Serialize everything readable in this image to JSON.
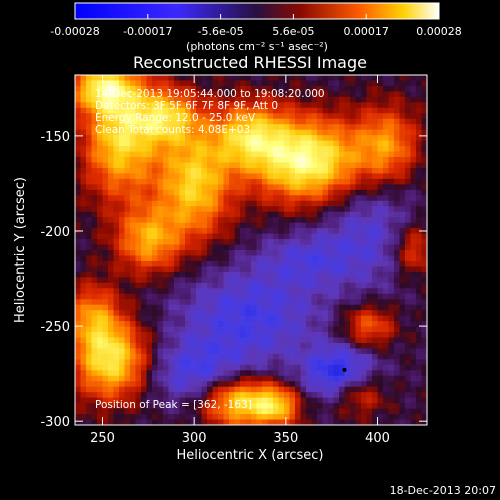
{
  "chart_data": {
    "type": "heatmap",
    "title": "Reconstructed RHESSI Image",
    "xlabel": "Heliocentric X (arcsec)",
    "ylabel": "Heliocentric Y (arcsec)",
    "xlim": [
      235,
      427
    ],
    "ylim": [
      -302,
      -118
    ],
    "xticks": [
      250,
      300,
      350,
      400
    ],
    "yticks": [
      -300,
      -250,
      -200,
      -150
    ],
    "colorbar": {
      "ticks": [
        "-0.00028",
        "-0.00017",
        "-5.6e-05",
        "5.6e-05",
        "0.00017",
        "0.00028"
      ],
      "range": [
        -0.00028,
        0.00028
      ],
      "unit_label": "(photons cm⁻² s⁻¹ asec⁻²)"
    },
    "info": [
      "14-Dec-2013 19:05:44.000 to 19:08:20.000",
      "Detectors: 3F 5F 6F 7F 8F 9F, Att 0",
      "Energy Range: 12.0 - 25.0 keV",
      "Clean    Total counts: 4.08E+03"
    ],
    "peak_label": "Position of Peak = [362, -163]",
    "peak": [
      362,
      -163
    ],
    "blobs": [
      {
        "x": 362,
        "y": -163,
        "sx": 20,
        "sy": 15,
        "a": 1.0
      },
      {
        "x": 330,
        "y": -150,
        "sx": 14,
        "sy": 12,
        "a": 0.7
      },
      {
        "x": 300,
        "y": -175,
        "sx": 14,
        "sy": 20,
        "a": 0.75
      },
      {
        "x": 285,
        "y": -140,
        "sx": 12,
        "sy": 10,
        "a": 0.65
      },
      {
        "x": 260,
        "y": -150,
        "sx": 14,
        "sy": 22,
        "a": 0.8
      },
      {
        "x": 250,
        "y": -125,
        "sx": 12,
        "sy": 8,
        "a": 0.7
      },
      {
        "x": 275,
        "y": -205,
        "sx": 12,
        "sy": 12,
        "a": 0.6
      },
      {
        "x": 255,
        "y": -268,
        "sx": 14,
        "sy": 14,
        "a": 0.85
      },
      {
        "x": 245,
        "y": -245,
        "sx": 10,
        "sy": 12,
        "a": 0.5
      },
      {
        "x": 325,
        "y": -290,
        "sx": 14,
        "sy": 9,
        "a": 0.8
      },
      {
        "x": 345,
        "y": -292,
        "sx": 9,
        "sy": 7,
        "a": 0.6
      },
      {
        "x": 405,
        "y": -155,
        "sx": 12,
        "sy": 14,
        "a": 0.55
      },
      {
        "x": 395,
        "y": -250,
        "sx": 10,
        "sy": 8,
        "a": 0.45
      },
      {
        "x": 390,
        "y": -285,
        "sx": 10,
        "sy": 8,
        "a": 0.4
      },
      {
        "x": 420,
        "y": -210,
        "sx": 8,
        "sy": 10,
        "a": 0.4
      },
      {
        "x": 380,
        "y": -275,
        "sx": 14,
        "sy": 10,
        "a": -0.55
      },
      {
        "x": 330,
        "y": -245,
        "sx": 28,
        "sy": 18,
        "a": -0.4
      },
      {
        "x": 300,
        "y": -275,
        "sx": 20,
        "sy": 12,
        "a": -0.35
      },
      {
        "x": 395,
        "y": -200,
        "sx": 20,
        "sy": 22,
        "a": -0.3
      },
      {
        "x": 360,
        "y": -215,
        "sx": 18,
        "sy": 10,
        "a": -0.25
      }
    ],
    "base_level": 0.05,
    "footer": "18-Dec-2013 20:07"
  }
}
